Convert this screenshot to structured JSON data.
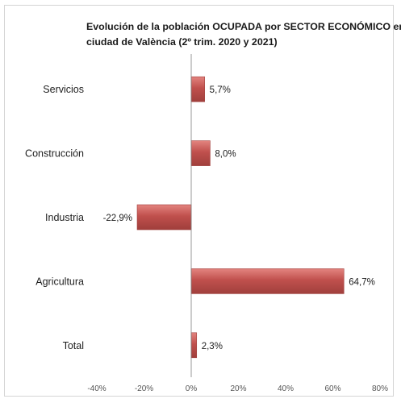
{
  "chart_data": {
    "type": "bar",
    "orientation": "horizontal",
    "title_lines": [
      "Evolución de la población OCUPADA por SECTOR ECONÓMICO en la",
      "ciudad de València (2º trim. 2020 y 2021)"
    ],
    "categories": [
      "Servicios",
      "Construcción",
      "Industria",
      "Agricultura",
      "Total"
    ],
    "values": [
      5.7,
      8.0,
      -22.9,
      64.7,
      2.3
    ],
    "data_labels": [
      "5,7%",
      "8,0%",
      "-22,9%",
      "64,7%",
      "2,3%"
    ],
    "xlim": [
      -40,
      80
    ],
    "x_ticks": [
      -40,
      -20,
      0,
      20,
      40,
      60,
      80
    ],
    "x_tick_labels": [
      "-40%",
      "-20%",
      "0%",
      "20%",
      "40%",
      "60%",
      "80%"
    ],
    "xlabel": "",
    "ylabel": "",
    "grid": false,
    "legend": "none",
    "bar_color": "#c0504d",
    "bar_gradient_light": "#e3847f",
    "bar_border": "#a03f3c"
  }
}
